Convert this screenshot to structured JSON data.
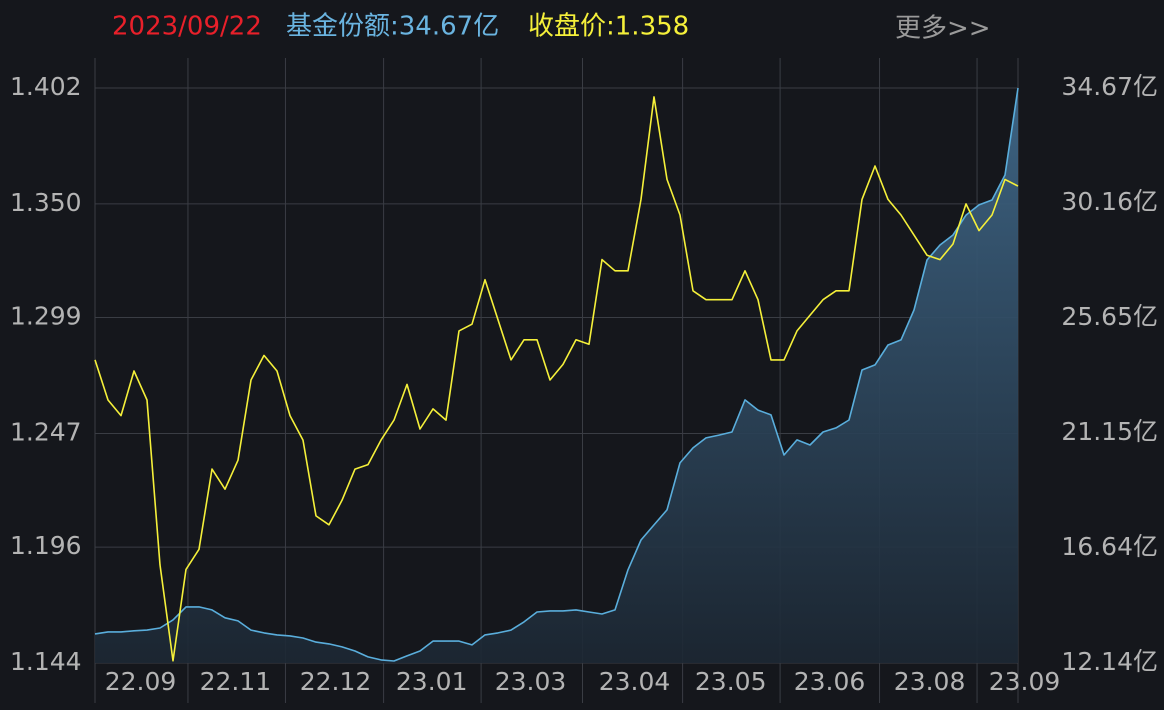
{
  "chart_data": {
    "type": "line",
    "date": "2023/09/22",
    "date_color": "#e8202a",
    "share_label": "基金份额:34.67亿",
    "share_color": "#6ab4e0",
    "close_label": "收盘价:1.358",
    "close_color": "#f5f03a",
    "more": "更多>>",
    "grid": true,
    "xlim": [
      0,
      71
    ],
    "xticks": [
      {
        "value": 3.5,
        "label": "22.09"
      },
      {
        "value": 10.8,
        "label": "22.11"
      },
      {
        "value": 18.5,
        "label": "22.12"
      },
      {
        "value": 25.9,
        "label": "23.01"
      },
      {
        "value": 33.5,
        "label": "23.03"
      },
      {
        "value": 41.5,
        "label": "23.04"
      },
      {
        "value": 48.9,
        "label": "23.05"
      },
      {
        "value": 56.5,
        "label": "23.06"
      },
      {
        "value": 64.2,
        "label": "23.08"
      },
      {
        "value": 71.5,
        "label": "23.09"
      }
    ],
    "ylim": [
      1.144,
      1.402
    ],
    "yticks": [
      1.402,
      {
        "value": 1.35,
        "label": "1.350"
      },
      1.299,
      1.247,
      1.196,
      1.144
    ],
    "y2lim": [
      12.14,
      34.67
    ],
    "y2ticks": [
      {
        "value": 34.67,
        "label": "34.67亿"
      },
      {
        "value": 30.16,
        "label": "30.16亿"
      },
      {
        "value": 25.65,
        "label": "25.65亿"
      },
      {
        "value": 21.15,
        "label": "21.15亿"
      },
      {
        "value": 16.64,
        "label": "16.64亿"
      },
      {
        "value": 12.14,
        "label": "12.14亿"
      }
    ],
    "series": [
      {
        "color": "#5aaedc",
        "axis": "y2",
        "area": true,
        "values": [
          13.28,
          13.36,
          13.36,
          13.4,
          13.43,
          13.51,
          13.83,
          14.34,
          14.34,
          14.22,
          13.91,
          13.79,
          13.43,
          13.32,
          13.24,
          13.2,
          13.12,
          12.96,
          12.89,
          12.77,
          12.61,
          12.38,
          12.26,
          12.22,
          12.42,
          12.61,
          13.0,
          13.0,
          13.0,
          12.85,
          13.24,
          13.32,
          13.43,
          13.75,
          14.14,
          14.18,
          14.18,
          14.22,
          14.14,
          14.06,
          14.22,
          15.79,
          16.96,
          17.55,
          18.14,
          19.98,
          20.57,
          20.96,
          21.07,
          21.19,
          22.45,
          22.05,
          21.86,
          20.29,
          20.88,
          20.68,
          21.19,
          21.35,
          21.66,
          23.62,
          23.82,
          24.6,
          24.8,
          25.97,
          27.93,
          28.52,
          28.91,
          29.69,
          30.09,
          30.28,
          31.26,
          34.67
        ]
      },
      {
        "color": "#f5f03a",
        "axis": "y",
        "values": [
          1.28,
          1.262,
          1.255,
          1.275,
          1.262,
          1.188,
          1.145,
          1.186,
          1.195,
          1.231,
          1.222,
          1.235,
          1.271,
          1.282,
          1.275,
          1.255,
          1.244,
          1.21,
          1.206,
          1.217,
          1.231,
          1.233,
          1.244,
          1.253,
          1.269,
          1.249,
          1.258,
          1.253,
          1.293,
          1.296,
          1.316,
          1.298,
          1.28,
          1.289,
          1.289,
          1.271,
          1.278,
          1.289,
          1.287,
          1.325,
          1.32,
          1.32,
          1.352,
          1.398,
          1.361,
          1.345,
          1.311,
          1.307,
          1.307,
          1.307,
          1.32,
          1.307,
          1.28,
          1.28,
          1.293,
          1.3,
          1.307,
          1.311,
          1.311,
          1.352,
          1.367,
          1.352,
          1.345,
          1.336,
          1.327,
          1.325,
          1.332,
          1.35,
          1.338,
          1.345,
          1.361,
          1.358
        ]
      }
    ]
  }
}
